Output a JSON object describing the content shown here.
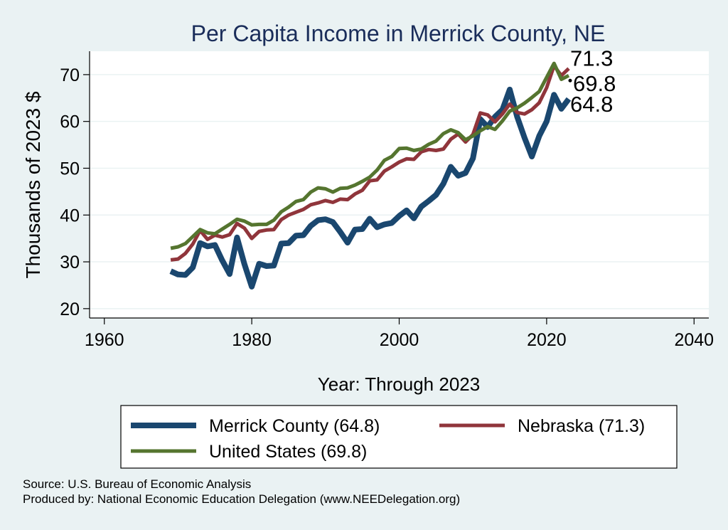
{
  "chart_data": {
    "type": "line",
    "title": "Per Capita Income in Merrick County, NE",
    "xlabel": "Year: Through 2023",
    "ylabel": "Thousands of 2023 $",
    "xlim": [
      1958,
      2042
    ],
    "ylim": [
      18,
      75
    ],
    "xticks": [
      1960,
      1980,
      2000,
      2020,
      2040
    ],
    "yticks": [
      20,
      30,
      40,
      50,
      60,
      70
    ],
    "grid": true,
    "legend_position": "bottom",
    "colors": {
      "merrick": "#1a476f",
      "nebraska": "#90353b",
      "us": "#55752f",
      "title": "#1a2d5a",
      "background": "#eaf2f3",
      "plot_background": "#ffffff",
      "grid": "#eaf2f3"
    },
    "x": [
      1969,
      1970,
      1971,
      1972,
      1973,
      1974,
      1975,
      1976,
      1977,
      1978,
      1979,
      1980,
      1981,
      1982,
      1983,
      1984,
      1985,
      1986,
      1987,
      1988,
      1989,
      1990,
      1991,
      1992,
      1993,
      1994,
      1995,
      1996,
      1997,
      1998,
      1999,
      2000,
      2001,
      2002,
      2003,
      2004,
      2005,
      2006,
      2007,
      2008,
      2009,
      2010,
      2011,
      2012,
      2013,
      2014,
      2015,
      2016,
      2017,
      2018,
      2019,
      2020,
      2021,
      2022,
      2023
    ],
    "series": [
      {
        "name": "Merrick County",
        "key": "merrick",
        "legend_label": "Merrick County (64.8)",
        "end_label": "64.8",
        "width": 8,
        "values": [
          28.0,
          27.3,
          27.2,
          28.8,
          34.0,
          33.3,
          33.6,
          30.3,
          27.4,
          35.2,
          29.5,
          24.7,
          29.6,
          29.1,
          29.2,
          33.9,
          34.0,
          35.6,
          35.7,
          37.7,
          38.9,
          39.1,
          38.5,
          36.4,
          34.1,
          36.9,
          37.0,
          39.2,
          37.4,
          38.0,
          38.3,
          39.8,
          41.0,
          39.3,
          41.8,
          43.0,
          44.3,
          46.7,
          50.3,
          48.4,
          49.0,
          52.1,
          60.5,
          58.8,
          61.0,
          62.5,
          66.8,
          61.0,
          56.5,
          52.5,
          56.9,
          60.0,
          65.7,
          62.7,
          64.8
        ]
      },
      {
        "name": "Nebraska",
        "key": "nebraska",
        "legend_label": "Nebraska (71.3)",
        "end_label": "71.3",
        "width": 5,
        "values": [
          30.4,
          30.6,
          31.8,
          33.8,
          36.7,
          34.8,
          35.7,
          35.3,
          35.8,
          38.2,
          37.2,
          35.0,
          36.5,
          36.8,
          36.9,
          39.0,
          40.0,
          40.6,
          41.2,
          42.2,
          42.6,
          43.1,
          42.7,
          43.4,
          43.3,
          44.5,
          45.3,
          47.3,
          47.5,
          49.4,
          50.3,
          51.3,
          52.0,
          51.9,
          53.5,
          54.0,
          53.8,
          54.1,
          56.2,
          57.3,
          55.6,
          57.2,
          61.8,
          61.4,
          59.9,
          61.6,
          63.7,
          61.9,
          61.6,
          62.5,
          64.0,
          67.2,
          71.9,
          69.8,
          71.3
        ]
      },
      {
        "name": "United States",
        "key": "us",
        "legend_label": "United States (69.8)",
        "end_label": "69.8",
        "width": 5,
        "values": [
          32.9,
          33.2,
          33.9,
          35.4,
          36.9,
          36.2,
          36.0,
          37.0,
          38.0,
          39.1,
          38.7,
          37.9,
          38.0,
          38.0,
          38.9,
          40.7,
          41.7,
          42.9,
          43.3,
          44.9,
          45.8,
          45.6,
          44.9,
          45.7,
          45.8,
          46.4,
          47.2,
          48.1,
          49.6,
          51.7,
          52.5,
          54.2,
          54.3,
          53.8,
          54.1,
          55.1,
          55.8,
          57.4,
          58.2,
          57.6,
          56.1,
          56.9,
          58.0,
          58.9,
          58.3,
          60.1,
          62.2,
          62.9,
          63.9,
          65.1,
          66.4,
          69.4,
          72.4,
          69.0,
          69.8
        ]
      }
    ]
  },
  "footer": {
    "source": "Source: U.S. Bureau of Economic Analysis",
    "producer": "Produced by: National Economic Education Delegation (www.NEEDelegation.org)"
  }
}
